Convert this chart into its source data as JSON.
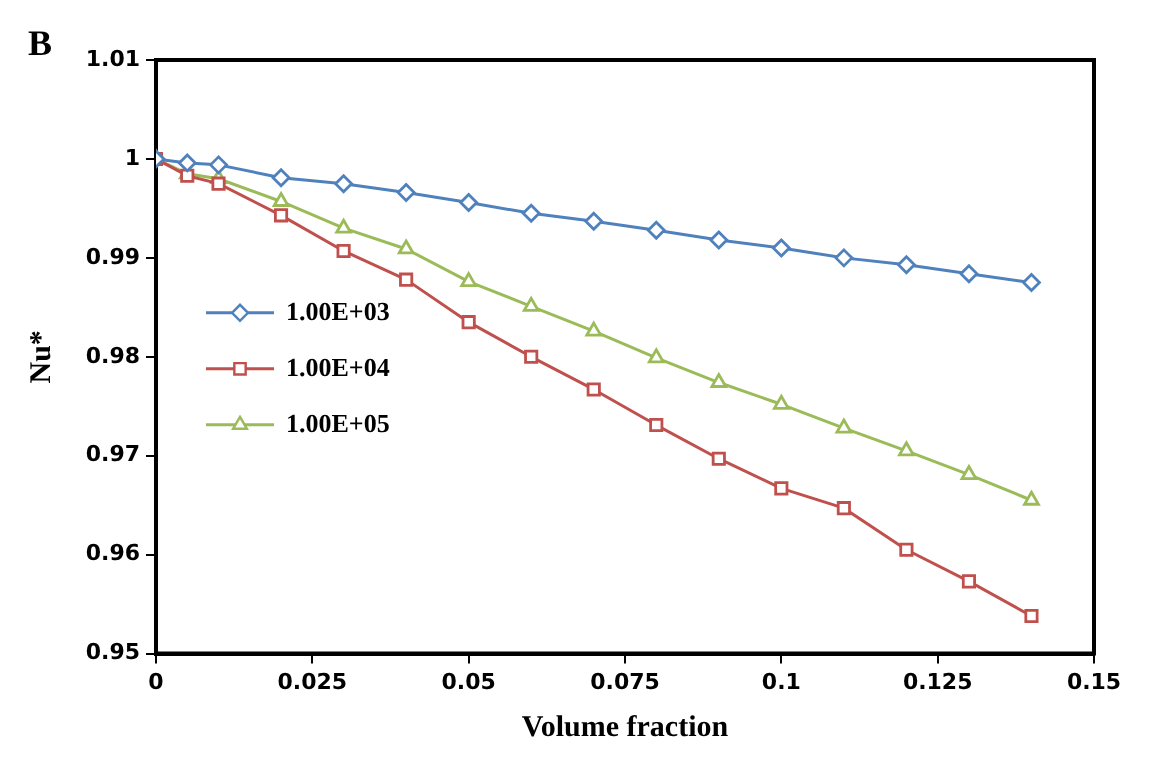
{
  "chart_data": {
    "type": "line",
    "annotations": [
      "B"
    ],
    "xlabel": "Volume fraction",
    "ylabel": "Nu*",
    "x": [
      0,
      0.005,
      0.01,
      0.02,
      0.03,
      0.04,
      0.05,
      0.06,
      0.07,
      0.08,
      0.09,
      0.1,
      0.11,
      0.12,
      0.13,
      0.14
    ],
    "series": [
      {
        "name": "1.00E+03",
        "color": "#4f81bd",
        "marker": "diamond",
        "values": [
          1,
          0.9996,
          0.9994,
          0.9981,
          0.9975,
          0.9966,
          0.9956,
          0.9945,
          0.9937,
          0.9928,
          0.9918,
          0.991,
          0.99,
          0.9893,
          0.9884,
          0.9875
        ]
      },
      {
        "name": "1.00E+04",
        "color": "#c0504d",
        "marker": "square",
        "values": [
          1,
          0.9983,
          0.9975,
          0.9943,
          0.9907,
          0.9878,
          0.9835,
          0.98,
          0.9767,
          0.9731,
          0.9697,
          0.9667,
          0.9647,
          0.9605,
          0.9573,
          0.9538
        ]
      },
      {
        "name": "1.00E+05",
        "color": "#9bbb59",
        "marker": "triangle",
        "values": [
          1,
          0.9985,
          0.998,
          0.9957,
          0.993,
          0.9909,
          0.9876,
          0.9851,
          0.9826,
          0.9799,
          0.9774,
          0.9752,
          0.9728,
          0.9705,
          0.9681,
          0.9655
        ]
      }
    ],
    "xlim": [
      0,
      0.15
    ],
    "xticks": [
      0,
      0.025,
      0.05,
      0.075,
      0.1,
      0.125,
      0.15
    ],
    "ylim": [
      0.95,
      1.01
    ],
    "yticks": [
      0.95,
      0.96,
      0.97,
      0.98,
      0.99,
      {
        "value": 1,
        "label": "1"
      },
      1.01
    ],
    "grid": false,
    "legend": "left"
  }
}
